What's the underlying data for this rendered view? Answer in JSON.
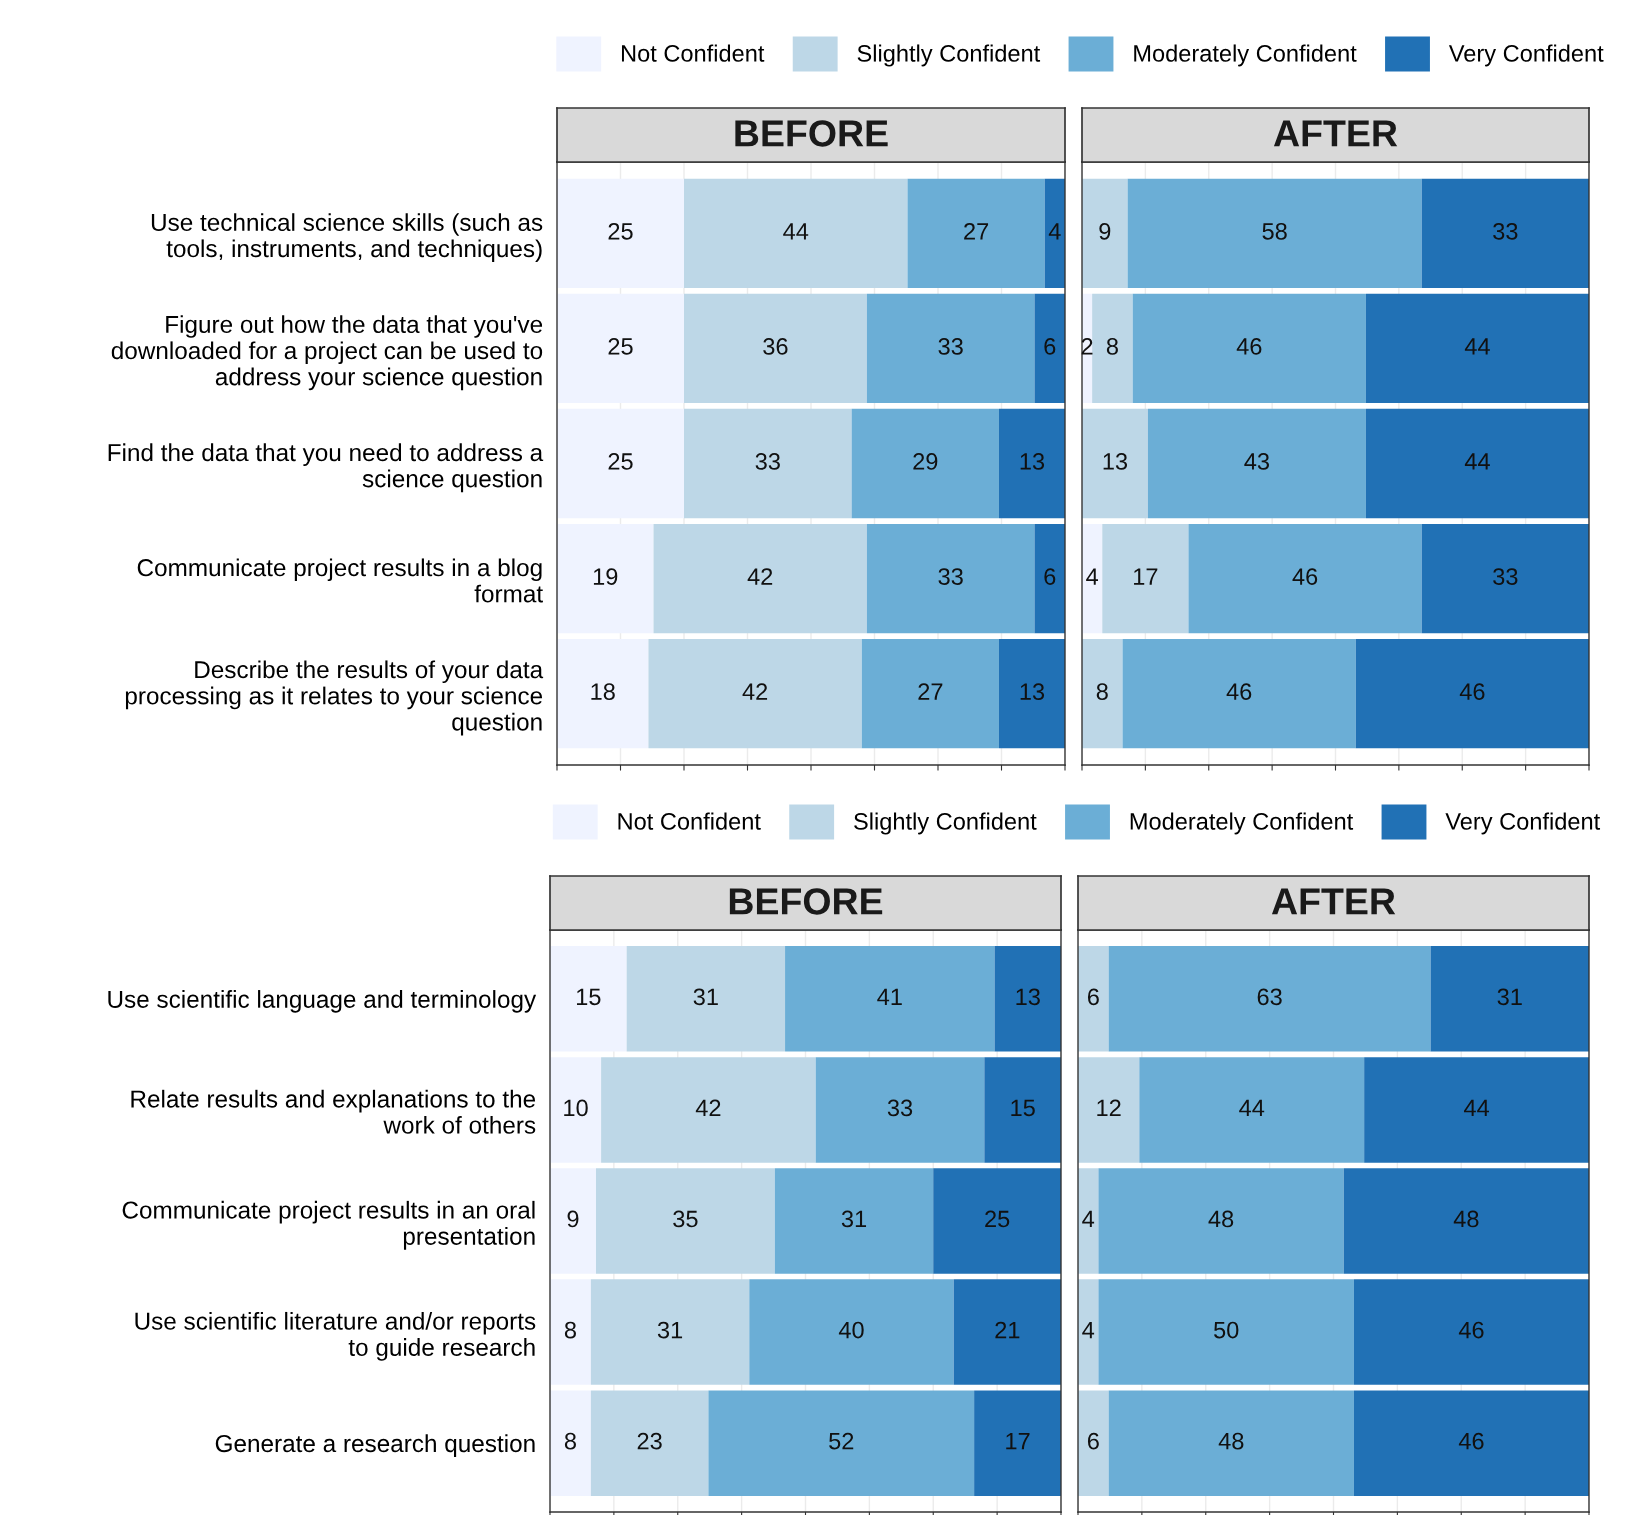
{
  "chart_data": [
    {
      "type": "bar",
      "orientation": "horizontal",
      "stacked": true,
      "title": "BEFORE",
      "data_labels": true,
      "grid": "x",
      "tick_labels": "y",
      "legend": "top",
      "xlim": [
        0,
        100
      ],
      "xticks": [
        {
          "value": 0,
          "label": null
        },
        {
          "value": 12.5,
          "label": null
        },
        {
          "value": 25,
          "label": null
        },
        {
          "value": 37.5,
          "label": null
        },
        {
          "value": 50,
          "label": null
        },
        {
          "value": 62.5,
          "label": null
        },
        {
          "value": 75,
          "label": null
        },
        {
          "value": 87.5,
          "label": null
        },
        {
          "value": 100,
          "label": null
        }
      ],
      "categories": [
        "Use technical science skills (such as\ntools, instruments, and techniques)",
        "Figure out how the data that you've\ndownloaded for a project can be used to\naddress your science question",
        "Find the data that you need to address a\nscience question",
        "Communicate project results in a blog\nformat",
        "Describe the results of your data\nprocessing as it relates to your science\nquestion"
      ],
      "series": [
        {
          "name": "Not Confident",
          "color": "#eff3ff",
          "values": [
            25,
            25,
            25,
            19,
            18
          ]
        },
        {
          "name": "Slightly Confident",
          "color": "#bdd7e7",
          "values": [
            44,
            36,
            33,
            42,
            42
          ]
        },
        {
          "name": "Moderately Confident",
          "color": "#6baed6",
          "values": [
            27,
            33,
            29,
            33,
            27
          ]
        },
        {
          "name": "Very Confident",
          "color": "#2171b5",
          "values": [
            4,
            6,
            13,
            6,
            13
          ]
        }
      ]
    },
    {
      "type": "bar",
      "orientation": "horizontal",
      "stacked": true,
      "title": "AFTER",
      "data_labels": true,
      "grid": "x",
      "tick_labels": false,
      "xlim": [
        0,
        100
      ],
      "xticks": [
        {
          "value": 0,
          "label": null
        },
        {
          "value": 12.5,
          "label": null
        },
        {
          "value": 25,
          "label": null
        },
        {
          "value": 37.5,
          "label": null
        },
        {
          "value": 50,
          "label": null
        },
        {
          "value": 62.5,
          "label": null
        },
        {
          "value": 75,
          "label": null
        },
        {
          "value": 87.5,
          "label": null
        },
        {
          "value": 100,
          "label": null
        }
      ],
      "categories": [
        null,
        null,
        null,
        null,
        null
      ],
      "series": [
        {
          "color": "#eff3ff",
          "values": [
            null,
            2,
            null,
            4,
            null
          ]
        },
        {
          "color": "#bdd7e7",
          "values": [
            9,
            8,
            13,
            17,
            8
          ]
        },
        {
          "color": "#6baed6",
          "values": [
            58,
            46,
            43,
            46,
            46
          ]
        },
        {
          "color": "#2171b5",
          "values": [
            33,
            44,
            44,
            33,
            46
          ]
        }
      ]
    },
    {
      "type": "bar",
      "orientation": "horizontal",
      "stacked": true,
      "title": "BEFORE",
      "data_labels": true,
      "grid": "x",
      "tick_labels": "y",
      "legend": "top",
      "xlim": [
        0,
        100
      ],
      "xticks": [
        {
          "value": 0,
          "label": null
        },
        {
          "value": 12.5,
          "label": null
        },
        {
          "value": 25,
          "label": null
        },
        {
          "value": 37.5,
          "label": null
        },
        {
          "value": 50,
          "label": null
        },
        {
          "value": 62.5,
          "label": null
        },
        {
          "value": 75,
          "label": null
        },
        {
          "value": 87.5,
          "label": null
        },
        {
          "value": 100,
          "label": null
        }
      ],
      "categories": [
        "Use scientific language and terminology",
        "Relate results and explanations to the\nwork of others",
        "Communicate project results in an oral\npresentation",
        "Use scientific literature and/or reports\nto guide research",
        "Generate a research question"
      ],
      "series": [
        {
          "name": "Not Confident",
          "color": "#eff3ff",
          "values": [
            15,
            10,
            9,
            8,
            8
          ]
        },
        {
          "name": "Slightly Confident",
          "color": "#bdd7e7",
          "values": [
            31,
            42,
            35,
            31,
            23
          ]
        },
        {
          "name": "Moderately Confident",
          "color": "#6baed6",
          "values": [
            41,
            33,
            31,
            40,
            52
          ]
        },
        {
          "name": "Very Confident",
          "color": "#2171b5",
          "values": [
            13,
            15,
            25,
            21,
            17
          ]
        }
      ]
    },
    {
      "type": "bar",
      "orientation": "horizontal",
      "stacked": true,
      "title": "AFTER",
      "data_labels": true,
      "grid": "x",
      "tick_labels": false,
      "xlim": [
        0,
        100
      ],
      "xticks": [
        {
          "value": 0,
          "label": null
        },
        {
          "value": 12.5,
          "label": null
        },
        {
          "value": 25,
          "label": null
        },
        {
          "value": 37.5,
          "label": null
        },
        {
          "value": 50,
          "label": null
        },
        {
          "value": 62.5,
          "label": null
        },
        {
          "value": 75,
          "label": null
        },
        {
          "value": 87.5,
          "label": null
        },
        {
          "value": 100,
          "label": null
        }
      ],
      "categories": [
        null,
        null,
        null,
        null,
        null
      ],
      "series": [
        {
          "color": "#bdd7e7",
          "values": [
            6,
            12,
            4,
            4,
            6
          ]
        },
        {
          "color": "#6baed6",
          "values": [
            63,
            44,
            48,
            50,
            48
          ]
        },
        {
          "color": "#2171b5",
          "values": [
            31,
            44,
            48,
            46,
            46
          ]
        }
      ]
    }
  ]
}
